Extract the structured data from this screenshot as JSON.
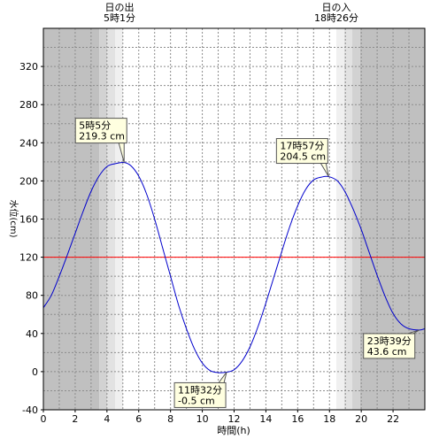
{
  "chart_data": {
    "type": "line",
    "xlabel": "時間(h)",
    "ylabel": "水位(cm)",
    "xlim": [
      0,
      24
    ],
    "ylim": [
      -40,
      360
    ],
    "xticks": [
      0,
      2,
      4,
      6,
      8,
      10,
      12,
      14,
      16,
      18,
      20,
      22
    ],
    "yticks": [
      -40,
      0,
      40,
      80,
      120,
      160,
      200,
      240,
      280,
      320
    ],
    "reference_line": {
      "y": 120,
      "color": "#ff0000"
    },
    "series": [
      {
        "color": "#0000cc",
        "x": [
          0,
          0.5,
          1,
          1.5,
          2,
          2.5,
          3,
          3.5,
          4,
          4.5,
          5.08,
          5.5,
          6,
          6.5,
          7,
          7.5,
          8,
          8.5,
          9,
          9.5,
          10,
          10.5,
          11,
          11.53,
          12,
          12.5,
          13,
          13.5,
          14,
          14.5,
          15,
          15.5,
          16,
          16.5,
          17,
          17.5,
          17.95,
          18.5,
          19,
          19.5,
          20,
          20.5,
          21,
          21.5,
          22,
          22.5,
          23,
          23.65,
          24
        ],
        "y": [
          67,
          80,
          100,
          122,
          145,
          168,
          189,
          205,
          215,
          218,
          219.3,
          216,
          205,
          186,
          160,
          130,
          100,
          70,
          45,
          24,
          9,
          1,
          -1,
          -0.5,
          2,
          11,
          26,
          47,
          72,
          99,
          126,
          152,
          174,
          191,
          201,
          204,
          204.5,
          200,
          188,
          170,
          149,
          125,
          101,
          79,
          61,
          50,
          45,
          43.6,
          45
        ]
      }
    ],
    "annotations": [
      {
        "time": "5時5分",
        "level": "219.3 cm",
        "x": 5.08,
        "y": 219.3
      },
      {
        "time": "11時32分",
        "level": "-0.5 cm",
        "x": 11.53,
        "y": -0.5
      },
      {
        "time": "17時57分",
        "level": "204.5 cm",
        "x": 17.95,
        "y": 204.5
      },
      {
        "time": "23時39分",
        "level": "43.6 cm",
        "x": 23.65,
        "y": 43.6
      }
    ],
    "sunrise": {
      "label": "日の出",
      "time": "5時1分",
      "hour": 5.017
    },
    "sunset": {
      "label": "日の入",
      "time": "18時26分",
      "hour": 18.433
    }
  }
}
